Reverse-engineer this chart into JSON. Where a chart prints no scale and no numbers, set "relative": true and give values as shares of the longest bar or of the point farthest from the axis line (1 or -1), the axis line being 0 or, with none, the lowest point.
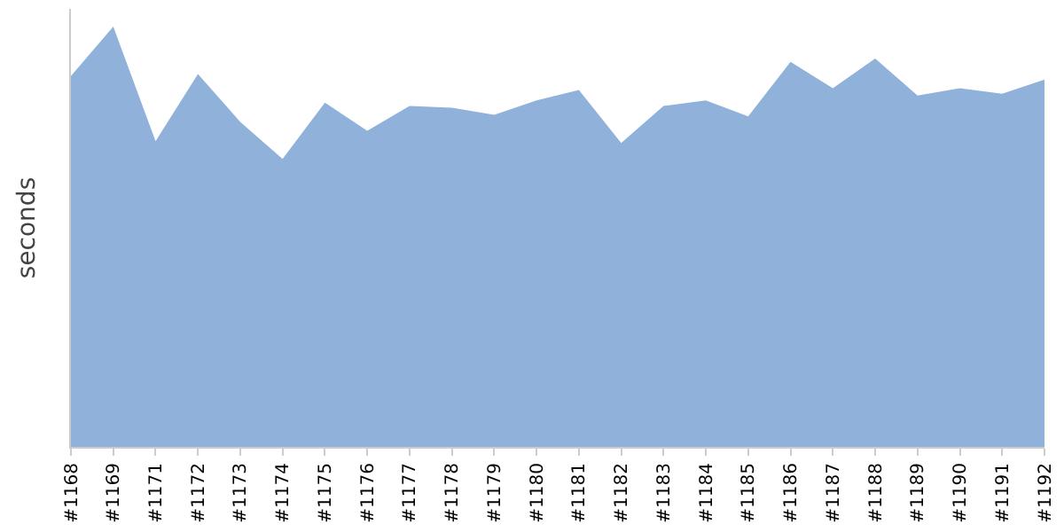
{
  "chart_data": {
    "type": "area",
    "ylabel": "seconds",
    "relative": true,
    "categories": [
      "#1168",
      "#1169",
      "#1171",
      "#1172",
      "#1173",
      "#1174",
      "#1175",
      "#1176",
      "#1177",
      "#1178",
      "#1179",
      "#1180",
      "#1181",
      "#1182",
      "#1183",
      "#1184",
      "#1185",
      "#1186",
      "#1187",
      "#1188",
      "#1189",
      "#1190",
      "#1191",
      "#1192"
    ],
    "series": [
      {
        "color": "#8fb1da",
        "values": [
          0.882,
          1,
          0.727,
          0.887,
          0.773,
          0.685,
          0.819,
          0.752,
          0.811,
          0.807,
          0.79,
          0.824,
          0.849,
          0.723,
          0.811,
          0.824,
          0.786,
          0.916,
          0.853,
          0.924,
          0.836,
          0.853,
          0.84,
          0.874
        ]
      }
    ]
  }
}
